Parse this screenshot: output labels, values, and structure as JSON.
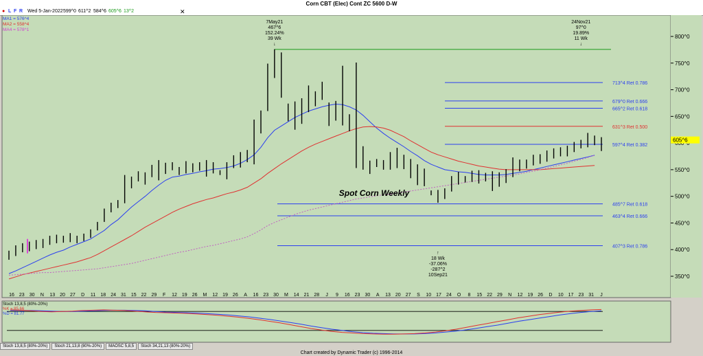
{
  "window": {
    "title": "Corn CBT (Elec) Cont ZC 5600 D-W"
  },
  "toolbar": {
    "buttons": [
      "L",
      "F",
      "R"
    ],
    "close_symbol": "✕"
  },
  "quote_line": {
    "date": "Wed 5-Jan-2022",
    "open": "599^0",
    "high": "611^2",
    "low": "584^6",
    "close": "605^6",
    "change": "13^2"
  },
  "legend": [
    {
      "label": "MA1 = 576^4",
      "color": "#2b3ff0"
    },
    {
      "label": "MA2 = 558^4",
      "color": "#e03030"
    },
    {
      "label": "MA4 = 578^1",
      "color": "#d040d0"
    }
  ],
  "colors": {
    "background": "#c5dcb8",
    "bars": "#000000",
    "ma1": "#2b3ff0",
    "ma2": "#e03030",
    "ma4": "#c060c0",
    "ret_blue": "#2b3ff0",
    "ret_red": "#e03030",
    "swing_high": "#1a9a1a",
    "price_tag": "#ffff00"
  },
  "chart_data": {
    "type": "bar",
    "ylim": [
      310,
      840
    ],
    "y_ticks": [
      350,
      400,
      450,
      500,
      550,
      600,
      650,
      700,
      750,
      800
    ],
    "y_tick_labels": [
      "350^0",
      "400^0",
      "450^0",
      "500^0",
      "550^0",
      "600^0",
      "650^0",
      "700^0",
      "750^0",
      "800^0"
    ],
    "x_tick_labels": [
      "16",
      "23",
      "30",
      "N",
      "13",
      "20",
      "27",
      "D",
      "11",
      "18",
      "24",
      "31",
      "15",
      "22",
      "29",
      "F",
      "12",
      "19",
      "26",
      "M",
      "12",
      "19",
      "26",
      "A",
      "16",
      "23",
      "30",
      "M",
      "14",
      "21",
      "28",
      "J",
      "9",
      "16",
      "23",
      "30",
      "A",
      "13",
      "20",
      "27",
      "S",
      "10",
      "17",
      "24",
      "O",
      "8",
      "15",
      "22",
      "29",
      "N",
      "12",
      "19",
      "26",
      "D",
      "10",
      "17",
      "23",
      "31",
      "J"
    ],
    "ohlc": [
      {
        "h": 398,
        "l": 381
      },
      {
        "h": 408,
        "l": 388
      },
      {
        "h": 412,
        "l": 395
      },
      {
        "h": 415,
        "l": 397
      },
      {
        "h": 418,
        "l": 401
      },
      {
        "h": 420,
        "l": 403
      },
      {
        "h": 426,
        "l": 409
      },
      {
        "h": 428,
        "l": 412
      },
      {
        "h": 426,
        "l": 413
      },
      {
        "h": 431,
        "l": 414
      },
      {
        "h": 426,
        "l": 412
      },
      {
        "h": 430,
        "l": 416
      },
      {
        "h": 438,
        "l": 422
      },
      {
        "h": 452,
        "l": 436
      },
      {
        "h": 477,
        "l": 452
      },
      {
        "h": 488,
        "l": 470
      },
      {
        "h": 493,
        "l": 478
      },
      {
        "h": 540,
        "l": 487
      },
      {
        "h": 537,
        "l": 515
      },
      {
        "h": 547,
        "l": 528
      },
      {
        "h": 545,
        "l": 522
      },
      {
        "h": 559,
        "l": 536
      },
      {
        "h": 568,
        "l": 530
      },
      {
        "h": 563,
        "l": 542
      },
      {
        "h": 564,
        "l": 549
      },
      {
        "h": 555,
        "l": 540
      },
      {
        "h": 566,
        "l": 543
      },
      {
        "h": 562,
        "l": 545
      },
      {
        "h": 564,
        "l": 548
      },
      {
        "h": 568,
        "l": 537
      },
      {
        "h": 564,
        "l": 543
      },
      {
        "h": 549,
        "l": 540
      },
      {
        "h": 564,
        "l": 532
      },
      {
        "h": 577,
        "l": 553
      },
      {
        "h": 583,
        "l": 554
      },
      {
        "h": 587,
        "l": 564
      },
      {
        "h": 644,
        "l": 560
      },
      {
        "h": 661,
        "l": 618
      },
      {
        "h": 749,
        "l": 660
      },
      {
        "h": 776,
        "l": 722
      },
      {
        "h": 770,
        "l": 685
      },
      {
        "h": 674,
        "l": 641
      },
      {
        "h": 678,
        "l": 625
      },
      {
        "h": 684,
        "l": 636
      },
      {
        "h": 708,
        "l": 658
      },
      {
        "h": 697,
        "l": 669
      },
      {
        "h": 715,
        "l": 681
      },
      {
        "h": 676,
        "l": 632
      },
      {
        "h": 679,
        "l": 642
      },
      {
        "h": 745,
        "l": 633
      },
      {
        "h": 654,
        "l": 622
      },
      {
        "h": 751,
        "l": 553
      },
      {
        "h": 594,
        "l": 550
      },
      {
        "h": 567,
        "l": 542
      },
      {
        "h": 570,
        "l": 555
      },
      {
        "h": 568,
        "l": 550
      },
      {
        "h": 583,
        "l": 550
      },
      {
        "h": 591,
        "l": 553
      },
      {
        "h": 578,
        "l": 551
      },
      {
        "h": 570,
        "l": 534
      },
      {
        "h": 560,
        "l": 521
      },
      {
        "h": 552,
        "l": 519
      },
      {
        "h": 511,
        "l": 502
      },
      {
        "h": 512,
        "l": 488
      },
      {
        "h": 515,
        "l": 495
      },
      {
        "h": 538,
        "l": 509
      },
      {
        "h": 546,
        "l": 522
      },
      {
        "h": 538,
        "l": 526
      },
      {
        "h": 548,
        "l": 527
      },
      {
        "h": 549,
        "l": 524
      },
      {
        "h": 544,
        "l": 528
      },
      {
        "h": 547,
        "l": 510
      },
      {
        "h": 545,
        "l": 518
      },
      {
        "h": 551,
        "l": 525
      },
      {
        "h": 573,
        "l": 536
      },
      {
        "h": 569,
        "l": 547
      },
      {
        "h": 569,
        "l": 552
      },
      {
        "h": 578,
        "l": 558
      },
      {
        "h": 579,
        "l": 561
      },
      {
        "h": 586,
        "l": 565
      },
      {
        "h": 590,
        "l": 571
      },
      {
        "h": 592,
        "l": 575
      },
      {
        "h": 595,
        "l": 575
      },
      {
        "h": 602,
        "l": 583
      },
      {
        "h": 606,
        "l": 590
      },
      {
        "h": 619,
        "l": 592
      },
      {
        "h": 614,
        "l": 596
      },
      {
        "h": 611,
        "l": 585
      }
    ],
    "series": [
      {
        "name": "MA1",
        "style": "solid",
        "values": [
          355,
          360,
          366,
          372,
          378,
          384,
          390,
          395,
          399,
          405,
          410,
          415,
          420,
          428,
          436,
          447,
          456,
          468,
          480,
          490,
          500,
          511,
          521,
          530,
          536,
          538,
          541,
          543,
          546,
          548,
          551,
          552,
          554,
          557,
          562,
          569,
          578,
          592,
          610,
          624,
          632,
          640,
          648,
          654,
          660,
          664,
          668,
          671,
          673,
          672,
          668,
          662,
          652,
          640,
          628,
          618,
          609,
          601,
          593,
          584,
          576,
          567,
          560,
          555,
          550,
          548,
          546,
          545,
          543,
          541,
          540,
          540,
          540,
          541,
          543,
          545,
          547,
          550,
          553,
          556,
          559,
          562,
          565,
          568,
          571,
          574,
          577
        ]
      },
      {
        "name": "MA2",
        "style": "solid",
        "values": [
          345,
          349,
          353,
          356,
          359,
          362,
          365,
          368,
          371,
          374,
          377,
          381,
          385,
          391,
          398,
          405,
          412,
          419,
          426,
          434,
          442,
          449,
          456,
          463,
          470,
          476,
          481,
          486,
          490,
          494,
          497,
          501,
          505,
          508,
          512,
          517,
          525,
          533,
          543,
          552,
          561,
          569,
          577,
          585,
          592,
          598,
          603,
          608,
          613,
          618,
          623,
          627,
          630,
          631,
          630,
          628,
          624,
          618,
          612,
          604,
          597,
          590,
          583,
          578,
          574,
          570,
          566,
          563,
          560,
          557,
          555,
          553,
          551,
          550,
          550,
          550,
          550,
          550,
          550,
          551,
          552,
          553,
          554,
          555,
          556,
          557,
          558
        ]
      },
      {
        "name": "MA4",
        "style": "dotted",
        "values": [
          352,
          353,
          354,
          355,
          356,
          357,
          357,
          358,
          359,
          360,
          361,
          362,
          363,
          364,
          366,
          368,
          370,
          372,
          374,
          377,
          380,
          383,
          386,
          389,
          392,
          395,
          397,
          400,
          403,
          406,
          408,
          411,
          414,
          417,
          420,
          424,
          430,
          437,
          445,
          451,
          456,
          461,
          466,
          470,
          474,
          477,
          480,
          483,
          486,
          489,
          492,
          495,
          497,
          499,
          501,
          503,
          504,
          506,
          508,
          510,
          512,
          514,
          516,
          518,
          520,
          522,
          524,
          526,
          528,
          530,
          532,
          534,
          536,
          538,
          540,
          542,
          545,
          547,
          550,
          553,
          556,
          559,
          562,
          566,
          569,
          573,
          577
        ]
      }
    ],
    "retracements": [
      {
        "label": "713^4 Ret 0.786",
        "value": 713.5,
        "color": "#2b3ff0"
      },
      {
        "label": "679^0 Ret 0.666",
        "value": 679,
        "color": "#2b3ff0"
      },
      {
        "label": "665^2 Ret 0.618",
        "value": 665.25,
        "color": "#2b3ff0"
      },
      {
        "label": "631^3 Ret 0.500",
        "value": 631.375,
        "color": "#e03030"
      },
      {
        "label": "597^4 Ret 0.382",
        "value": 597.5,
        "color": "#2b3ff0"
      },
      {
        "label": "485^7 Ret 0.618",
        "value": 485.875,
        "color": "#2b3ff0"
      },
      {
        "label": "463^4 Ret 0.666",
        "value": 463.5,
        "color": "#2b3ff0"
      },
      {
        "label": "407^3 Ret 0.786",
        "value": 407.375,
        "color": "#2b3ff0"
      }
    ],
    "swing_high_line": {
      "value": 775.75
    },
    "last_price": {
      "label": "605^6",
      "value": 605.75
    },
    "annotations": [
      {
        "lines": [
          "7May21",
          "467^6",
          "152.24%",
          "39 Wk"
        ],
        "bar": 39,
        "position": "above"
      },
      {
        "lines": [
          "24Nov21",
          "97^0",
          "19.89%",
          "11 Wk"
        ],
        "bar": 84,
        "position": "above"
      },
      {
        "lines": [
          "18 Wk",
          "-37.06%",
          "-287^2",
          "10Sep21"
        ],
        "bar": 63,
        "position": "below"
      }
    ],
    "chart_label": "Spot Corn Weekly"
  },
  "stoch": {
    "title": "Stoch 13,8,5 (80%-20%)",
    "k_label": "%K = 85.66",
    "d_label": "%D = 81.77",
    "k_color": "#e03030",
    "d_color": "#2b3ff0",
    "levels": [
      80,
      20
    ],
    "k": [
      85,
      84,
      82,
      80,
      79,
      80,
      81,
      83,
      84,
      85,
      84,
      83,
      81,
      79,
      77,
      76,
      75,
      74,
      72,
      70,
      68,
      65,
      62,
      58,
      54,
      49,
      44,
      38,
      32,
      26,
      21,
      17,
      14,
      12,
      10,
      9,
      8,
      8,
      9,
      10,
      12,
      15,
      19,
      24,
      30,
      36,
      42,
      48,
      54,
      60,
      65,
      70,
      74,
      78,
      81,
      83,
      85,
      86
    ],
    "d": [
      83,
      83,
      83,
      82,
      81,
      80,
      80,
      81,
      82,
      83,
      84,
      84,
      83,
      82,
      80,
      78,
      77,
      76,
      75,
      73,
      71,
      69,
      66,
      63,
      59,
      55,
      50,
      45,
      40,
      34,
      29,
      24,
      20,
      16,
      13,
      11,
      10,
      9,
      9,
      9,
      10,
      12,
      15,
      18,
      22,
      27,
      32,
      37,
      43,
      49,
      54,
      59,
      64,
      69,
      73,
      77,
      80,
      82
    ]
  },
  "tabs": [
    "Stoch 13,8,5 (80%-20%)",
    "Stoch 21,13,8 (80%-20%)",
    "MAOSC 5,8,5",
    "Stoch 34,21,13 (80%-20%)"
  ],
  "footer": "Chart created by Dynamic Trader  (c) 1996-2014"
}
